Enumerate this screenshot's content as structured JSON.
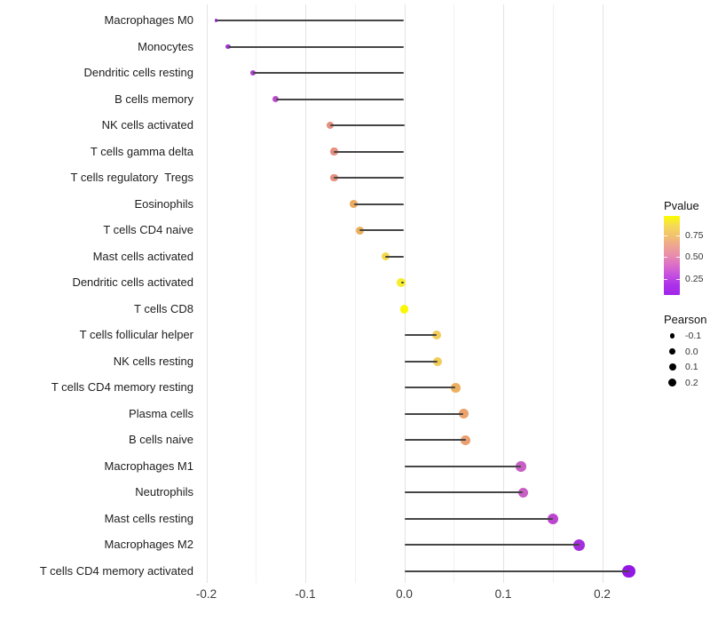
{
  "chart_data": {
    "type": "lollipop",
    "title": "",
    "xlabel": "",
    "ylabel": "",
    "grid": "on",
    "x_axis": {
      "range": [
        -0.2076,
        0.2354
      ],
      "major_ticks": [
        -0.2,
        -0.1,
        0.0,
        0.1,
        0.2
      ],
      "minor_ticks": [
        -0.15,
        -0.05,
        0.05,
        0.15
      ],
      "tick_labels": [
        "-0.2",
        "-0.1",
        "0.0",
        "0.1",
        "0.2"
      ]
    },
    "rows": [
      {
        "label": "Macrophages M0",
        "pearson": -0.19,
        "pvalue": 0.1,
        "color": "#9A30D4",
        "diameter": 3.6
      },
      {
        "label": "Monocytes",
        "pearson": -0.178,
        "pvalue": 0.12,
        "color": "#A135D3",
        "diameter": 5.2
      },
      {
        "label": "Dendritic cells resting",
        "pearson": -0.153,
        "pvalue": 0.17,
        "color": "#AC3FD0",
        "diameter": 6.6
      },
      {
        "label": "B cells memory",
        "pearson": -0.13,
        "pvalue": 0.23,
        "color": "#BB4ACB",
        "diameter": 7.4
      },
      {
        "label": "NK cells activated",
        "pearson": -0.075,
        "pvalue": 0.58,
        "color": "#E68F7F",
        "diameter": 8.4
      },
      {
        "label": "T cells gamma delta",
        "pearson": -0.071,
        "pvalue": 0.58,
        "color": "#E68F7F",
        "diameter": 8.4
      },
      {
        "label": "T cells regulatory  Tregs",
        "pearson": -0.071,
        "pvalue": 0.58,
        "color": "#E68F7F",
        "diameter": 8.4
      },
      {
        "label": "Eosinophils",
        "pearson": -0.051,
        "pvalue": 0.67,
        "color": "#EBAA60",
        "diameter": 8.8
      },
      {
        "label": "T cells CD4 naive",
        "pearson": -0.045,
        "pvalue": 0.69,
        "color": "#ECB05C",
        "diameter": 8.9
      },
      {
        "label": "Mast cells activated",
        "pearson": -0.019,
        "pvalue": 0.85,
        "color": "#F3D74B",
        "diameter": 9.3
      },
      {
        "label": "Dendritic cells activated",
        "pearson": -0.003,
        "pvalue": 0.95,
        "color": "#F8EC2E",
        "diameter": 9.5
      },
      {
        "label": "T cells CD8",
        "pearson": 0.0,
        "pvalue": 0.99,
        "color": "#FBF703",
        "diameter": 9.7
      },
      {
        "label": "T cells follicular helper",
        "pearson": 0.033,
        "pvalue": 0.8,
        "color": "#F1CC58",
        "diameter": 10.2
      },
      {
        "label": "NK cells resting",
        "pearson": 0.034,
        "pvalue": 0.8,
        "color": "#F1CC58",
        "diameter": 10.2
      },
      {
        "label": "T cells CD4 memory resting",
        "pearson": 0.052,
        "pvalue": 0.7,
        "color": "#EDAF60",
        "diameter": 10.5
      },
      {
        "label": "Plasma cells",
        "pearson": 0.06,
        "pvalue": 0.66,
        "color": "#EBA36B",
        "diameter": 10.7
      },
      {
        "label": "B cells naive",
        "pearson": 0.062,
        "pvalue": 0.64,
        "color": "#EA9F70",
        "diameter": 10.7
      },
      {
        "label": "Macrophages M1",
        "pearson": 0.118,
        "pvalue": 0.33,
        "color": "#C75FC4",
        "diameter": 11.6
      },
      {
        "label": "Neutrophils",
        "pearson": 0.12,
        "pvalue": 0.33,
        "color": "#C75FC4",
        "diameter": 11.6
      },
      {
        "label": "Mast cells resting",
        "pearson": 0.15,
        "pvalue": 0.24,
        "color": "#BB45CF",
        "diameter": 12.3
      },
      {
        "label": "Macrophages M2",
        "pearson": 0.177,
        "pvalue": 0.14,
        "color": "#A52EDC",
        "diameter": 13.0
      },
      {
        "label": "T cells CD4 memory activated",
        "pearson": 0.227,
        "pvalue": 0.05,
        "color": "#9418E3",
        "diameter": 14.3
      }
    ],
    "legend": {
      "pvalue": {
        "title": "Pvalue",
        "bar_range": [
          0.06,
          0.98
        ],
        "tick_values": [
          0.75,
          0.5,
          0.25
        ],
        "tick_labels": [
          "0.75",
          "0.50",
          "0.25"
        ],
        "gradient_top_to_bottom": [
          "#FBFD00",
          "#F5D957",
          "#F1C16F",
          "#EEA58F",
          "#E88CAD",
          "#DB6DC9",
          "#C44FE0",
          "#AB30EA",
          "#A326E9"
        ]
      },
      "pearson": {
        "title": "Pearson",
        "items": [
          {
            "label": "-0.1",
            "diameter": 5.3
          },
          {
            "label": "0.0",
            "diameter": 6.7
          },
          {
            "label": "0.1",
            "diameter": 8.0
          },
          {
            "label": "0.2",
            "diameter": 9.0
          }
        ]
      }
    },
    "colors": {
      "stem": "#454545",
      "grid_major": "#e3e3e3",
      "grid_minor": "#f0f0f0",
      "background": "#ffffff"
    }
  }
}
